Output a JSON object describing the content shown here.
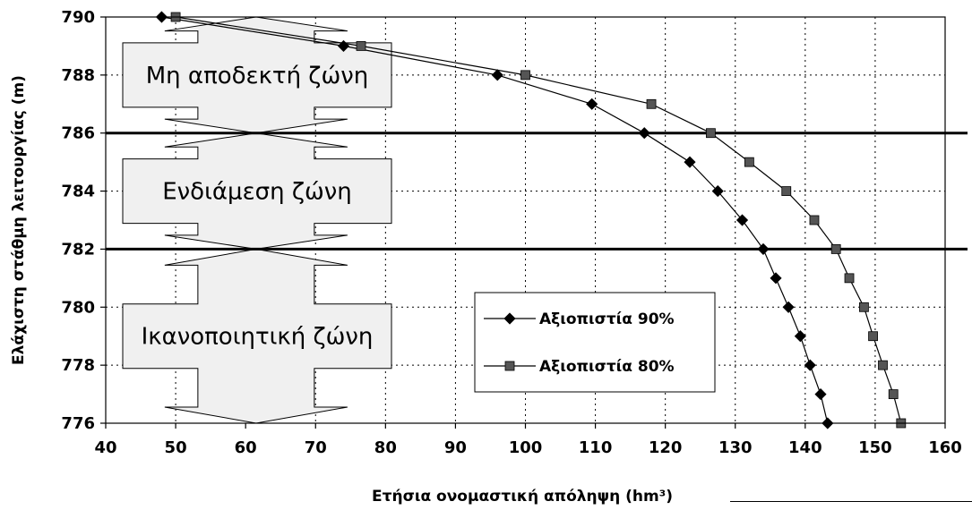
{
  "chart_data": {
    "type": "line",
    "title": "",
    "xlabel": "Ετήσια ονομαστική απόληψη (hm³)",
    "ylabel": "Ελάχιστη στάθμη λειτουργίας (m)",
    "xlim": [
      40,
      160
    ],
    "ylim": [
      776,
      790
    ],
    "x_ticks": [
      "40",
      "50",
      "60",
      "70",
      "80",
      "90",
      "100",
      "110",
      "120",
      "130",
      "140",
      "150",
      "160"
    ],
    "y_ticks": [
      "776",
      "778",
      "780",
      "782",
      "784",
      "786",
      "788",
      "790"
    ],
    "grid": true,
    "legend_position": "bottom-right",
    "series": [
      {
        "name": "Αξιοπιστία 90%",
        "marker": "diamond",
        "points": [
          {
            "x": 48,
            "y": 790
          },
          {
            "x": 74,
            "y": 789
          },
          {
            "x": 96,
            "y": 788
          },
          {
            "x": 109.5,
            "y": 787
          },
          {
            "x": 117,
            "y": 786
          },
          {
            "x": 123.5,
            "y": 785
          },
          {
            "x": 127.5,
            "y": 784
          },
          {
            "x": 131,
            "y": 783
          },
          {
            "x": 134,
            "y": 782
          },
          {
            "x": 135.8,
            "y": 781
          },
          {
            "x": 137.6,
            "y": 780
          },
          {
            "x": 139.3,
            "y": 779
          },
          {
            "x": 140.7,
            "y": 778
          },
          {
            "x": 142.2,
            "y": 777
          },
          {
            "x": 143.2,
            "y": 776
          }
        ]
      },
      {
        "name": "Αξιοπιστία 80%",
        "marker": "square",
        "points": [
          {
            "x": 50,
            "y": 790
          },
          {
            "x": 76.5,
            "y": 789
          },
          {
            "x": 100,
            "y": 788
          },
          {
            "x": 118,
            "y": 787
          },
          {
            "x": 126.5,
            "y": 786
          },
          {
            "x": 132,
            "y": 785
          },
          {
            "x": 137.3,
            "y": 784
          },
          {
            "x": 141.3,
            "y": 783
          },
          {
            "x": 144.4,
            "y": 782
          },
          {
            "x": 146.3,
            "y": 781
          },
          {
            "x": 148.4,
            "y": 780
          },
          {
            "x": 149.7,
            "y": 779
          },
          {
            "x": 151.1,
            "y": 778
          },
          {
            "x": 152.6,
            "y": 777
          },
          {
            "x": 153.7,
            "y": 776
          }
        ]
      }
    ],
    "threshold_lines": [
      786,
      782
    ],
    "zones": [
      {
        "label": "Μη αποδεκτή ζώνη",
        "from": 790,
        "to": 786
      },
      {
        "label": "Ενδιάμεση ζώνη",
        "from": 786,
        "to": 782
      },
      {
        "label": "Ικανοποιητική ζώνη",
        "from": 782,
        "to": 776
      }
    ],
    "zone_arrow_x": 61.5
  },
  "colors": {
    "series_90": "#000000",
    "series_80": "#555555",
    "zone_fill": "#f0f0f0"
  }
}
